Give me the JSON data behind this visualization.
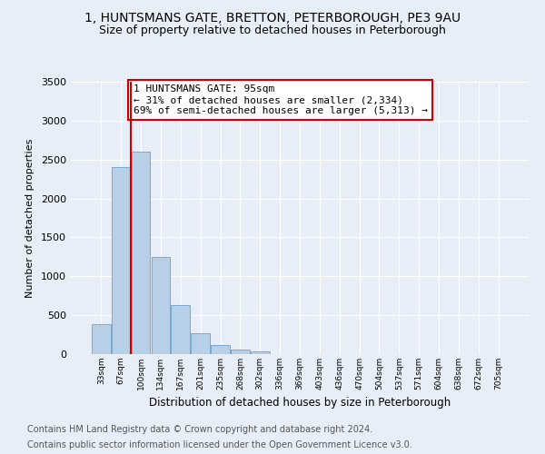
{
  "title_line1": "1, HUNTSMANS GATE, BRETTON, PETERBOROUGH, PE3 9AU",
  "title_line2": "Size of property relative to detached houses in Peterborough",
  "xlabel": "Distribution of detached houses by size in Peterborough",
  "ylabel": "Number of detached properties",
  "categories": [
    "33sqm",
    "67sqm",
    "100sqm",
    "134sqm",
    "167sqm",
    "201sqm",
    "235sqm",
    "268sqm",
    "302sqm",
    "336sqm",
    "369sqm",
    "403sqm",
    "436sqm",
    "470sqm",
    "504sqm",
    "537sqm",
    "571sqm",
    "604sqm",
    "638sqm",
    "672sqm",
    "705sqm"
  ],
  "values": [
    390,
    2400,
    2600,
    1250,
    630,
    270,
    115,
    60,
    40,
    0,
    0,
    0,
    0,
    0,
    0,
    0,
    0,
    0,
    0,
    0,
    0
  ],
  "bar_color": "#b8cfe8",
  "bar_edge_color": "#7aa8d0",
  "vline_x": 1.5,
  "vline_color": "#cc0000",
  "annotation_text": "1 HUNTSMANS GATE: 95sqm\n← 31% of detached houses are smaller (2,334)\n69% of semi-detached houses are larger (5,313) →",
  "annotation_box_color": "#ffffff",
  "annotation_box_edge": "#cc0000",
  "ylim": [
    0,
    3500
  ],
  "yticks": [
    0,
    500,
    1000,
    1500,
    2000,
    2500,
    3000,
    3500
  ],
  "bg_color": "#e8eef8",
  "plot_bg_color": "#e8eef8",
  "footer_line1": "Contains HM Land Registry data © Crown copyright and database right 2024.",
  "footer_line2": "Contains public sector information licensed under the Open Government Licence v3.0.",
  "title_fontsize": 10,
  "subtitle_fontsize": 9,
  "annotation_fontsize": 8,
  "footer_fontsize": 7
}
